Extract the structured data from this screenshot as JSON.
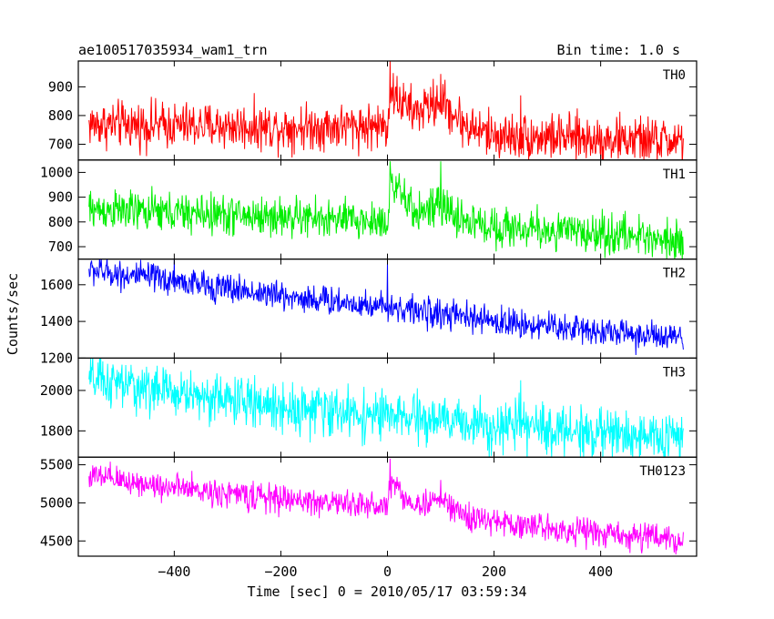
{
  "chart_data": {
    "type": "line",
    "title_left": "ae100517035934_wam1_trn",
    "title_right": "Bin time: 1.0 s",
    "xlabel": "Time [sec] 0 = 2010/05/17 03:59:34",
    "ylabel": "Counts/sec",
    "xlim": [
      -580,
      580
    ],
    "x_ticks": [
      -400,
      -200,
      0,
      200,
      400
    ],
    "x_tick_labels": [
      "−400",
      "−200",
      "0",
      "200",
      "400"
    ],
    "x_range": [
      -560,
      555
    ],
    "bin_time": 1.0,
    "panels": [
      {
        "name": "TH0",
        "color": "#ff0000",
        "ylim": [
          645,
          990
        ],
        "y_ticks": [
          700,
          800,
          900
        ],
        "trend_x": [
          -560,
          -200,
          0,
          5,
          50,
          100,
          150,
          200,
          555
        ],
        "trend_y": [
          770,
          760,
          765,
          880,
          810,
          850,
          760,
          730,
          710
        ],
        "noise": 40,
        "spikes": [
          {
            "x": 5,
            "value": 990
          },
          {
            "x": 100,
            "value": 945
          },
          {
            "x": 250,
            "value": 870
          }
        ]
      },
      {
        "name": "TH1",
        "color": "#00ee00",
        "ylim": [
          650,
          1050
        ],
        "y_ticks": [
          700,
          800,
          900,
          1000
        ],
        "trend_x": [
          -560,
          -200,
          0,
          5,
          50,
          100,
          150,
          200,
          555
        ],
        "trend_y": [
          850,
          820,
          800,
          960,
          840,
          860,
          800,
          780,
          730
        ],
        "noise": 40,
        "spikes": [
          {
            "x": 5,
            "value": 1045
          },
          {
            "x": 100,
            "value": 1045
          }
        ]
      },
      {
        "name": "TH2",
        "color": "#0000ff",
        "ylim": [
          1200,
          1740
        ],
        "y_ticks": [
          1200,
          1400,
          1600
        ],
        "trend_x": [
          -560,
          -400,
          -200,
          0,
          200,
          400,
          555
        ],
        "trend_y": [
          1680,
          1620,
          1540,
          1480,
          1400,
          1350,
          1300
        ],
        "noise": 40,
        "spikes": [
          {
            "x": 0,
            "value": 1720
          },
          {
            "x": -400,
            "value": 1740
          }
        ]
      },
      {
        "name": "TH3",
        "color": "#00ffff",
        "ylim": [
          1670,
          2160
        ],
        "y_ticks": [
          1800,
          2000
        ],
        "trend_x": [
          -560,
          -400,
          -200,
          0,
          200,
          400,
          555
        ],
        "trend_y": [
          2050,
          1990,
          1920,
          1870,
          1830,
          1790,
          1760
        ],
        "noise": 60,
        "spikes": [
          {
            "x": -540,
            "value": 2160
          },
          {
            "x": 250,
            "value": 2050
          }
        ]
      },
      {
        "name": "TH0123",
        "color": "#ff00ff",
        "ylim": [
          4300,
          5600
        ],
        "y_ticks": [
          4500,
          5000,
          5500
        ],
        "trend_x": [
          -560,
          -400,
          -200,
          0,
          5,
          50,
          100,
          150,
          200,
          400,
          555
        ],
        "trend_y": [
          5350,
          5200,
          5050,
          4950,
          5300,
          4950,
          5050,
          4800,
          4750,
          4600,
          4520
        ],
        "noise": 90,
        "spikes": [
          {
            "x": 5,
            "value": 5580
          },
          {
            "x": 100,
            "value": 5300
          }
        ]
      }
    ]
  }
}
